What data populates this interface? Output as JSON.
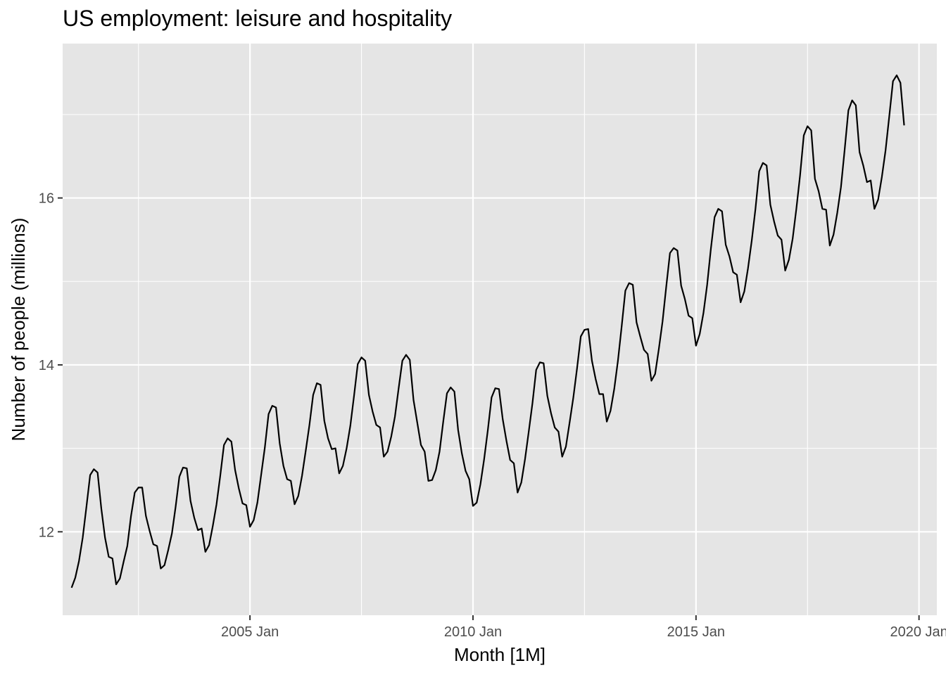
{
  "chart_data": {
    "type": "line",
    "title": "US employment: leisure and hospitality",
    "xlabel": "Month [1M]",
    "ylabel": "Number of people (millions)",
    "xlim": [
      2000.8,
      2020.4
    ],
    "ylim": [
      11.0,
      17.85
    ],
    "x_ticks": [
      {
        "value": 2005,
        "label": "2005 Jan"
      },
      {
        "value": 2010,
        "label": "2010 Jan"
      },
      {
        "value": 2015,
        "label": "2015 Jan"
      },
      {
        "value": 2020,
        "label": "2020 Jan"
      }
    ],
    "y_ticks": [
      {
        "value": 12,
        "label": "12"
      },
      {
        "value": 14,
        "label": "14"
      },
      {
        "value": 16,
        "label": "16"
      }
    ],
    "grid": true,
    "legend": "none",
    "series": [
      {
        "start": "2001 Jan",
        "frequency": "monthly",
        "color": "#000000",
        "values": [
          11.33,
          11.45,
          11.65,
          11.93,
          12.3,
          12.68,
          12.75,
          12.71,
          12.28,
          11.93,
          11.7,
          11.68,
          11.37,
          11.44,
          11.64,
          11.83,
          12.19,
          12.47,
          12.53,
          12.53,
          12.19,
          12.01,
          11.85,
          11.83,
          11.56,
          11.6,
          11.78,
          11.98,
          12.3,
          12.66,
          12.77,
          12.76,
          12.37,
          12.17,
          12.02,
          12.04,
          11.76,
          11.84,
          12.07,
          12.33,
          12.67,
          13.04,
          13.12,
          13.08,
          12.74,
          12.52,
          12.34,
          12.32,
          12.06,
          12.14,
          12.35,
          12.68,
          13.01,
          13.41,
          13.51,
          13.49,
          13.06,
          12.79,
          12.63,
          12.61,
          12.33,
          12.43,
          12.67,
          12.97,
          13.28,
          13.64,
          13.78,
          13.76,
          13.33,
          13.12,
          12.99,
          13.0,
          12.7,
          12.79,
          13.0,
          13.27,
          13.63,
          14.01,
          14.09,
          14.05,
          13.64,
          13.44,
          13.28,
          13.25,
          12.9,
          12.96,
          13.14,
          13.38,
          13.72,
          14.05,
          14.12,
          14.06,
          13.58,
          13.31,
          13.04,
          12.96,
          12.61,
          12.62,
          12.74,
          12.96,
          13.32,
          13.66,
          13.73,
          13.68,
          13.22,
          12.94,
          12.73,
          12.63,
          12.31,
          12.35,
          12.57,
          12.87,
          13.22,
          13.61,
          13.72,
          13.71,
          13.35,
          13.09,
          12.86,
          12.82,
          12.47,
          12.59,
          12.87,
          13.2,
          13.54,
          13.94,
          14.03,
          14.02,
          13.63,
          13.42,
          13.25,
          13.2,
          12.9,
          13.02,
          13.31,
          13.61,
          13.96,
          14.34,
          14.42,
          14.43,
          14.05,
          13.83,
          13.65,
          13.65,
          13.32,
          13.45,
          13.71,
          14.05,
          14.46,
          14.89,
          14.98,
          14.96,
          14.51,
          14.34,
          14.18,
          14.13,
          13.81,
          13.89,
          14.19,
          14.52,
          14.94,
          15.34,
          15.4,
          15.37,
          14.95,
          14.79,
          14.59,
          14.56,
          14.23,
          14.37,
          14.62,
          14.96,
          15.39,
          15.77,
          15.87,
          15.84,
          15.44,
          15.3,
          15.11,
          15.08,
          14.75,
          14.88,
          15.16,
          15.49,
          15.87,
          16.32,
          16.42,
          16.39,
          15.92,
          15.72,
          15.55,
          15.5,
          15.13,
          15.26,
          15.51,
          15.87,
          16.27,
          16.75,
          16.86,
          16.81,
          16.23,
          16.08,
          15.87,
          15.86,
          15.43,
          15.56,
          15.82,
          16.13,
          16.58,
          17.05,
          17.17,
          17.11,
          16.55,
          16.39,
          16.19,
          16.21,
          15.87,
          15.98,
          16.25,
          16.57,
          16.98,
          17.4,
          17.47,
          17.38,
          16.87
        ]
      }
    ]
  }
}
